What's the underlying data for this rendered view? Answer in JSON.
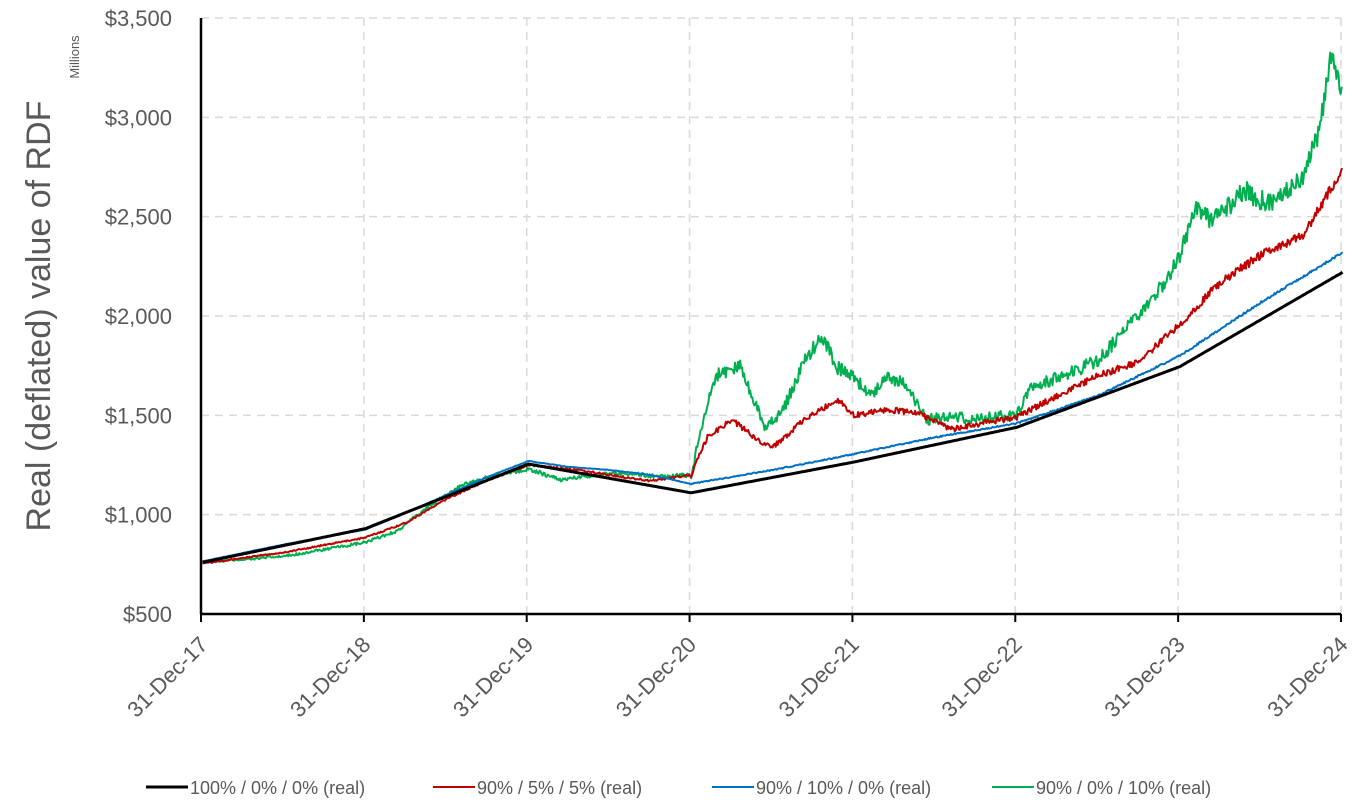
{
  "chart_data": {
    "type": "line",
    "ylabel": "Real (deflated) value of RDF",
    "units_label": "Millions",
    "ylim": [
      500,
      3500
    ],
    "yticks": [
      500,
      1000,
      1500,
      2000,
      2500,
      3000,
      3500
    ],
    "ytick_labels": [
      "$500",
      "$1,000",
      "$1,500",
      "$2,000",
      "$2,500",
      "$3,000",
      "$3,500"
    ],
    "xlim": [
      2017.99,
      2024.99
    ],
    "xticks": [
      2017.99,
      2018.99,
      2019.99,
      2020.99,
      2021.99,
      2022.99,
      2023.99,
      2024.99
    ],
    "xtick_labels": [
      "31-Dec-17",
      "31-Dec-18",
      "31-Dec-19",
      "31-Dec-20",
      "31-Dec-21",
      "31-Dec-22",
      "31-Dec-23",
      "31-Dec-24"
    ],
    "grid": true,
    "legend_position": "bottom",
    "series": [
      {
        "name": "100% / 0% / 0% (real)",
        "color": "#000000",
        "x": [
          2018.0,
          2019.0,
          2020.0,
          2021.0,
          2022.0,
          2023.0,
          2024.0,
          2025.0
        ],
        "y": [
          760,
          930,
          1255,
          1110,
          1265,
          1440,
          1745,
          2220
        ]
      },
      {
        "name": "90% / 5% / 5% (real)",
        "color": "#C00000",
        "x": [
          2018.0,
          2018.5,
          2019.0,
          2019.25,
          2019.5,
          2019.75,
          2020.0,
          2020.25,
          2020.5,
          2020.75,
          2021.0,
          2021.1,
          2021.25,
          2021.4,
          2021.5,
          2021.7,
          2021.9,
          2022.0,
          2022.2,
          2022.4,
          2022.6,
          2022.85,
          2023.0,
          2023.25,
          2023.5,
          2023.75,
          2024.0,
          2024.25,
          2024.5,
          2024.75,
          2024.9,
          2025.0
        ],
        "y": [
          755,
          810,
          885,
          960,
          1080,
          1175,
          1250,
          1230,
          1200,
          1170,
          1200,
          1390,
          1480,
          1380,
          1340,
          1480,
          1580,
          1500,
          1530,
          1510,
          1430,
          1470,
          1490,
          1600,
          1700,
          1770,
          1960,
          2170,
          2310,
          2400,
          2600,
          2740
        ]
      },
      {
        "name": "90% / 10% / 0% (real)",
        "color": "#0070C0",
        "x": [
          2018.0,
          2018.5,
          2019.0,
          2019.25,
          2019.5,
          2019.75,
          2020.0,
          2020.25,
          2020.5,
          2020.75,
          2021.0,
          2021.5,
          2022.0,
          2022.5,
          2023.0,
          2023.5,
          2024.0,
          2024.5,
          2025.0
        ],
        "y": [
          765,
          850,
          925,
          1010,
          1100,
          1190,
          1270,
          1240,
          1225,
          1200,
          1155,
          1225,
          1305,
          1390,
          1460,
          1600,
          1800,
          2070,
          2320
        ]
      },
      {
        "name": "90% / 0% / 10% (real)",
        "color": "#00B050",
        "x": [
          2018.0,
          2018.5,
          2019.0,
          2019.2,
          2019.4,
          2019.6,
          2019.8,
          2020.0,
          2020.2,
          2020.4,
          2020.6,
          2020.8,
          2021.0,
          2021.05,
          2021.15,
          2021.3,
          2021.45,
          2021.55,
          2021.7,
          2021.8,
          2021.9,
          2022.0,
          2022.1,
          2022.2,
          2022.3,
          2022.45,
          2022.6,
          2022.75,
          2022.9,
          2023.0,
          2023.1,
          2023.3,
          2023.5,
          2023.75,
          2023.9,
          2024.0,
          2024.1,
          2024.2,
          2024.4,
          2024.55,
          2024.75,
          2024.85,
          2024.93,
          2025.0
        ],
        "y": [
          760,
          790,
          860,
          920,
          1050,
          1150,
          1200,
          1230,
          1175,
          1200,
          1210,
          1190,
          1200,
          1400,
          1700,
          1750,
          1450,
          1500,
          1780,
          1900,
          1740,
          1690,
          1600,
          1700,
          1660,
          1480,
          1490,
          1480,
          1500,
          1500,
          1650,
          1700,
          1780,
          2000,
          2160,
          2300,
          2540,
          2480,
          2630,
          2560,
          2700,
          2900,
          3300,
          3150
        ]
      }
    ]
  }
}
